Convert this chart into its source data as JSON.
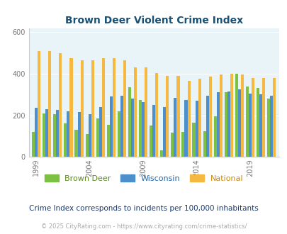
{
  "title": "Brown Deer Violent Crime Index",
  "years": [
    1999,
    2000,
    2001,
    2002,
    2003,
    2004,
    2005,
    2006,
    2007,
    2008,
    2009,
    2010,
    2011,
    2012,
    2013,
    2014,
    2015,
    2016,
    2017,
    2018,
    2019,
    2020,
    2021
  ],
  "brown_deer": [
    120,
    210,
    205,
    160,
    130,
    110,
    185,
    155,
    220,
    335,
    275,
    150,
    30,
    115,
    120,
    165,
    125,
    195,
    310,
    400,
    340,
    330,
    280
  ],
  "wisconsin": [
    235,
    230,
    225,
    220,
    215,
    205,
    240,
    290,
    295,
    280,
    265,
    250,
    240,
    285,
    275,
    270,
    295,
    310,
    315,
    325,
    305,
    300,
    295
  ],
  "national": [
    510,
    510,
    500,
    475,
    465,
    465,
    475,
    475,
    465,
    430,
    430,
    405,
    390,
    390,
    365,
    375,
    385,
    395,
    400,
    395,
    380,
    380,
    380
  ],
  "bar_colors": {
    "brown_deer": "#7dc142",
    "wisconsin": "#4d8fcc",
    "national": "#f5b942"
  },
  "bg_color": "#e8f4f8",
  "ylim": [
    0,
    620
  ],
  "yticks": [
    0,
    200,
    400,
    600
  ],
  "legend_labels": [
    "Brown Deer",
    "Wisconsin",
    "National"
  ],
  "legend_label_colors": [
    "#5a8a1a",
    "#2266aa",
    "#cc8800"
  ],
  "footnote1": "Crime Index corresponds to incidents per 100,000 inhabitants",
  "footnote2": "© 2025 CityRating.com - https://www.cityrating.com/crime-statistics/",
  "xtick_years": [
    1999,
    2004,
    2009,
    2014,
    2019
  ],
  "title_color": "#1a5276",
  "footnote1_color": "#1a3a6e",
  "footnote2_color": "#aaaaaa",
  "bar_width": 0.27
}
